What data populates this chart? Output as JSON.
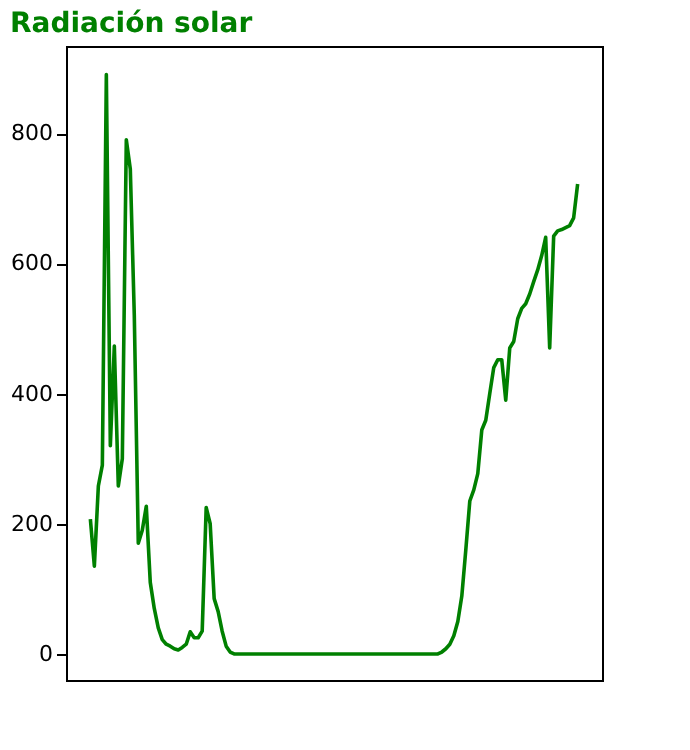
{
  "chart_data": {
    "type": "line",
    "title": "Radiación solar",
    "categories": [
      null,
      null,
      null,
      null,
      null,
      null,
      null,
      null,
      null,
      null,
      null,
      null,
      null,
      null,
      null,
      null,
      null,
      null,
      null,
      null,
      null,
      null,
      null,
      null,
      null,
      null,
      null,
      null,
      null,
      null,
      null,
      null,
      null,
      null,
      null,
      null,
      null,
      null,
      null,
      null,
      null,
      null,
      null,
      null,
      null,
      null,
      null,
      null,
      null,
      null,
      null,
      null,
      null,
      null,
      null,
      null,
      null,
      null,
      null,
      null,
      null,
      null,
      null,
      null,
      null,
      null,
      null,
      null,
      null,
      null,
      null,
      null,
      null,
      null,
      null,
      null,
      null,
      null,
      null,
      null,
      null,
      null,
      null,
      null,
      null,
      null,
      null,
      null,
      null,
      null,
      null,
      null,
      null,
      null,
      null,
      null,
      null,
      null,
      null,
      null,
      null,
      null,
      null,
      null,
      null,
      null,
      null,
      null,
      null,
      null,
      null,
      null,
      null,
      null,
      null,
      null,
      null,
      null,
      null,
      null,
      null,
      null,
      null
    ],
    "series": [
      {
        "color": "#008000",
        "values": [
          207,
          135,
          258,
          290,
          890,
          320,
          473,
          258,
          300,
          790,
          745,
          520,
          170,
          190,
          227,
          110,
          70,
          40,
          22,
          15,
          12,
          8,
          6,
          10,
          15,
          34,
          25,
          25,
          35,
          225,
          200,
          85,
          65,
          35,
          12,
          3,
          0,
          0,
          0,
          0,
          0,
          0,
          0,
          0,
          0,
          0,
          0,
          0,
          0,
          0,
          0,
          0,
          0,
          0,
          0,
          0,
          0,
          0,
          0,
          0,
          0,
          0,
          0,
          0,
          0,
          0,
          0,
          0,
          0,
          0,
          0,
          0,
          0,
          0,
          0,
          0,
          0,
          0,
          0,
          0,
          0,
          0,
          0,
          0,
          0,
          0,
          0,
          0,
          3,
          8,
          15,
          28,
          50,
          89,
          160,
          235,
          252,
          277,
          344,
          359,
          400,
          440,
          452,
          452,
          390,
          470,
          480,
          515,
          531,
          538,
          553,
          572,
          590,
          612,
          640,
          470,
          642,
          650,
          652,
          655,
          658,
          670,
          722
        ]
      }
    ],
    "ylim": [
      -40,
      934
    ],
    "yticks": [
      0,
      200,
      400,
      600,
      800
    ],
    "grid": false,
    "tick_labels": "y"
  }
}
